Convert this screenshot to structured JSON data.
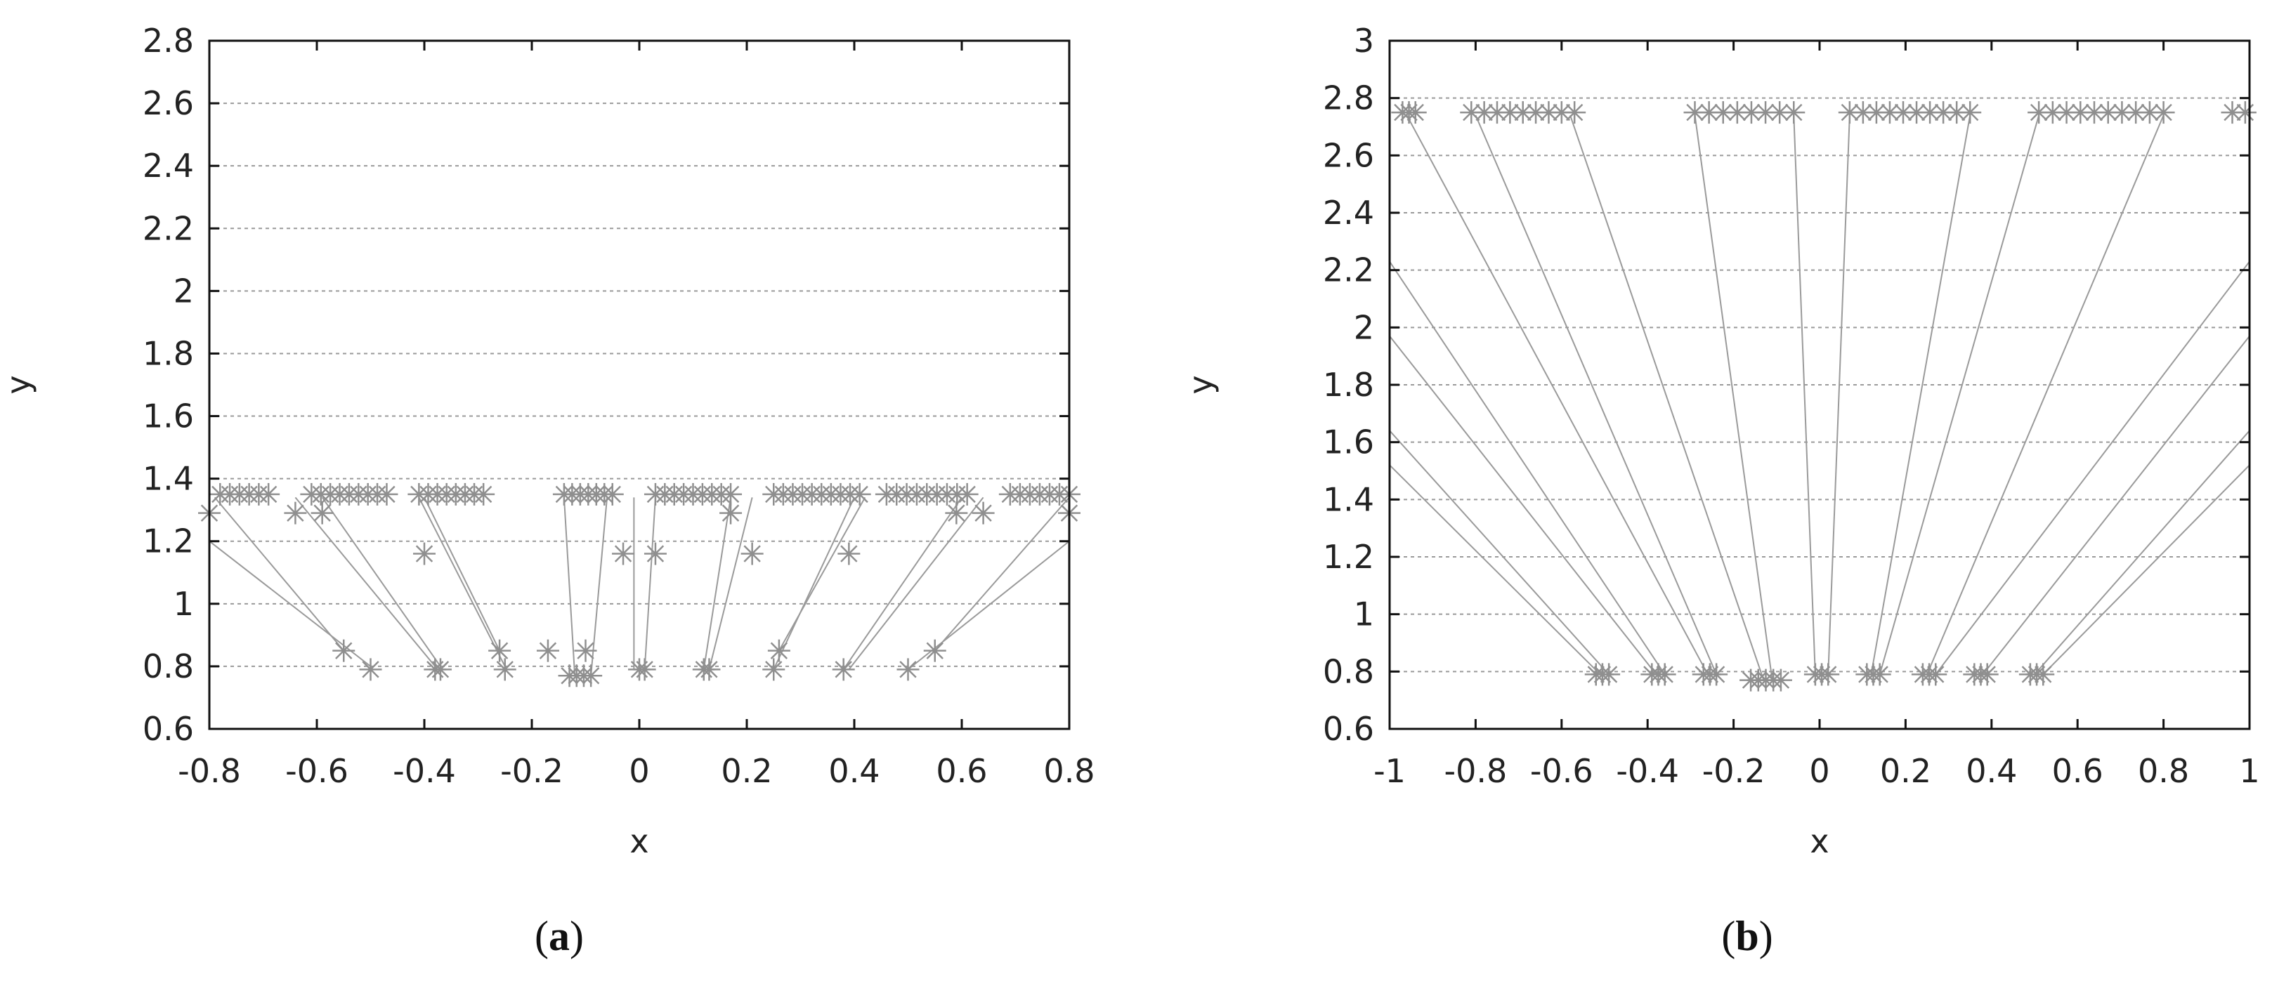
{
  "colors": {
    "series": "#9a9a9a",
    "grid": "#9a9a9a",
    "frame": "#111111",
    "text": "#222222"
  },
  "chart_data": [
    {
      "type": "scatter",
      "caption_letter": "a",
      "xlabel": "x",
      "ylabel": "y",
      "xlim": [
        -0.8,
        0.8
      ],
      "ylim": [
        0.6,
        2.8
      ],
      "grid": "horizontal dashed",
      "xticks": [
        -0.8,
        -0.6,
        -0.4,
        -0.2,
        0,
        0.2,
        0.4,
        0.6,
        0.8
      ],
      "yticks": [
        0.6,
        0.8,
        1,
        1.2,
        1.4,
        1.6,
        1.8,
        2,
        2.2,
        2.4,
        2.6,
        2.8
      ],
      "xtick_labels": [
        "-0.8",
        "-0.6",
        "-0.4",
        "-0.2",
        "0",
        "0.2",
        "0.4",
        "0.6",
        "0.8"
      ],
      "ytick_labels": [
        "0.6",
        "0.8",
        "1",
        "1.2",
        "1.4",
        "1.6",
        "1.8",
        "2",
        "2.2",
        "2.4",
        "2.6",
        "2.8"
      ],
      "marker": "asterisk",
      "clusters": [
        {
          "y": 1.35,
          "x_from": -0.78,
          "x_to": -0.69,
          "count": 6
        },
        {
          "y": 1.35,
          "x_from": -0.61,
          "x_to": -0.47,
          "count": 9
        },
        {
          "y": 1.35,
          "x_from": -0.41,
          "x_to": -0.29,
          "count": 8
        },
        {
          "y": 1.35,
          "x_from": -0.14,
          "x_to": -0.05,
          "count": 7
        },
        {
          "y": 1.35,
          "x_from": 0.03,
          "x_to": 0.17,
          "count": 9
        },
        {
          "y": 1.35,
          "x_from": 0.25,
          "x_to": 0.41,
          "count": 10
        },
        {
          "y": 1.35,
          "x_from": 0.46,
          "x_to": 0.61,
          "count": 9
        },
        {
          "y": 1.35,
          "x_from": 0.69,
          "x_to": 0.8,
          "count": 7
        },
        {
          "y": 0.77,
          "x_from": -0.13,
          "x_to": -0.09,
          "count": 4
        }
      ],
      "points": [
        [
          -0.8,
          1.29
        ],
        [
          -0.64,
          1.29
        ],
        [
          -0.59,
          1.29
        ],
        [
          -0.4,
          1.16
        ],
        [
          -0.55,
          0.85
        ],
        [
          -0.5,
          0.79
        ],
        [
          -0.38,
          0.79
        ],
        [
          -0.37,
          0.79
        ],
        [
          -0.26,
          0.85
        ],
        [
          -0.25,
          0.79
        ],
        [
          -0.17,
          0.85
        ],
        [
          -0.1,
          0.85
        ],
        [
          -0.03,
          1.16
        ],
        [
          0.03,
          1.16
        ],
        [
          0,
          0.79
        ],
        [
          0.01,
          0.79
        ],
        [
          0.12,
          0.79
        ],
        [
          0.13,
          0.79
        ],
        [
          0.17,
          1.29
        ],
        [
          0.21,
          1.16
        ],
        [
          0.25,
          0.79
        ],
        [
          0.26,
          0.85
        ],
        [
          0.38,
          0.79
        ],
        [
          0.39,
          1.16
        ],
        [
          0.5,
          0.79
        ],
        [
          0.55,
          0.85
        ],
        [
          0.59,
          1.29
        ],
        [
          0.64,
          1.29
        ],
        [
          0.8,
          1.29
        ]
      ],
      "lines": [
        [
          [
            -0.8,
            1.2
          ],
          [
            -0.5,
            0.8
          ]
        ],
        [
          [
            -0.79,
            1.34
          ],
          [
            -0.55,
            0.85
          ]
        ],
        [
          [
            -0.64,
            1.34
          ],
          [
            -0.38,
            0.8
          ]
        ],
        [
          [
            -0.59,
            1.34
          ],
          [
            -0.37,
            0.8
          ]
        ],
        [
          [
            -0.41,
            1.34
          ],
          [
            -0.25,
            0.8
          ]
        ],
        [
          [
            -0.4,
            1.34
          ],
          [
            -0.26,
            0.85
          ]
        ],
        [
          [
            -0.14,
            1.34
          ],
          [
            -0.12,
            0.77
          ]
        ],
        [
          [
            -0.06,
            1.34
          ],
          [
            -0.09,
            0.77
          ]
        ],
        [
          [
            -0.01,
            1.34
          ],
          [
            -0.01,
            0.79
          ]
        ],
        [
          [
            0.03,
            1.34
          ],
          [
            0.01,
            0.79
          ]
        ],
        [
          [
            0.17,
            1.34
          ],
          [
            0.12,
            0.79
          ]
        ],
        [
          [
            0.21,
            1.34
          ],
          [
            0.13,
            0.79
          ]
        ],
        [
          [
            0.4,
            1.34
          ],
          [
            0.25,
            0.79
          ]
        ],
        [
          [
            0.42,
            1.34
          ],
          [
            0.26,
            0.85
          ]
        ],
        [
          [
            0.6,
            1.34
          ],
          [
            0.38,
            0.79
          ]
        ],
        [
          [
            0.64,
            1.34
          ],
          [
            0.39,
            0.79
          ]
        ],
        [
          [
            0.8,
            1.34
          ],
          [
            0.55,
            0.85
          ]
        ],
        [
          [
            0.8,
            1.2
          ],
          [
            0.5,
            0.79
          ]
        ]
      ]
    },
    {
      "type": "scatter",
      "caption_letter": "b",
      "xlabel": "x",
      "ylabel": "y",
      "xlim": [
        -1,
        1
      ],
      "ylim": [
        0.6,
        3
      ],
      "grid": "horizontal dashed",
      "xticks": [
        -1,
        -0.8,
        -0.6,
        -0.4,
        -0.2,
        0,
        0.2,
        0.4,
        0.6,
        0.8,
        1
      ],
      "yticks": [
        0.6,
        0.8,
        1,
        1.2,
        1.4,
        1.6,
        1.8,
        2,
        2.2,
        2.4,
        2.6,
        2.8,
        3
      ],
      "xtick_labels": [
        "-1",
        "-0.8",
        "-0.6",
        "-0.4",
        "-0.2",
        "0",
        "0.2",
        "0.4",
        "0.6",
        "0.8",
        "1"
      ],
      "ytick_labels": [
        "0.6",
        "0.8",
        "1",
        "1.2",
        "1.4",
        "1.6",
        "1.8",
        "2",
        "2.2",
        "2.4",
        "2.6",
        "2.8",
        "3"
      ],
      "marker": "asterisk",
      "clusters": [
        {
          "y": 2.75,
          "x_from": -0.97,
          "x_to": -0.94,
          "count": 3
        },
        {
          "y": 2.75,
          "x_from": -0.81,
          "x_to": -0.57,
          "count": 9
        },
        {
          "y": 2.75,
          "x_from": -0.29,
          "x_to": -0.06,
          "count": 8
        },
        {
          "y": 2.75,
          "x_from": 0.07,
          "x_to": 0.35,
          "count": 10
        },
        {
          "y": 2.75,
          "x_from": 0.51,
          "x_to": 0.8,
          "count": 10
        },
        {
          "y": 2.75,
          "x_from": 0.96,
          "x_to": 0.99,
          "count": 2
        },
        {
          "y": 0.79,
          "x_from": -0.52,
          "x_to": -0.49,
          "count": 3
        },
        {
          "y": 0.79,
          "x_from": -0.39,
          "x_to": -0.36,
          "count": 3
        },
        {
          "y": 0.79,
          "x_from": -0.27,
          "x_to": -0.24,
          "count": 3
        },
        {
          "y": 0.77,
          "x_from": -0.16,
          "x_to": -0.09,
          "count": 5
        },
        {
          "y": 0.79,
          "x_from": -0.01,
          "x_to": 0.02,
          "count": 3
        },
        {
          "y": 0.79,
          "x_from": 0.11,
          "x_to": 0.14,
          "count": 3
        },
        {
          "y": 0.79,
          "x_from": 0.24,
          "x_to": 0.27,
          "count": 3
        },
        {
          "y": 0.79,
          "x_from": 0.36,
          "x_to": 0.39,
          "count": 3
        },
        {
          "y": 0.79,
          "x_from": 0.49,
          "x_to": 0.52,
          "count": 3
        }
      ],
      "points": [],
      "lines": [
        [
          [
            -1,
            1.52
          ],
          [
            -0.51,
            0.79
          ]
        ],
        [
          [
            -1,
            1.64
          ],
          [
            -0.49,
            0.79
          ]
        ],
        [
          [
            -1,
            1.97
          ],
          [
            -0.38,
            0.79
          ]
        ],
        [
          [
            -1,
            2.23
          ],
          [
            -0.36,
            0.79
          ]
        ],
        [
          [
            -0.96,
            2.74
          ],
          [
            -0.26,
            0.79
          ]
        ],
        [
          [
            -0.8,
            2.74
          ],
          [
            -0.24,
            0.79
          ]
        ],
        [
          [
            -0.58,
            2.74
          ],
          [
            -0.13,
            0.77
          ]
        ],
        [
          [
            -0.29,
            2.74
          ],
          [
            -0.11,
            0.77
          ]
        ],
        [
          [
            -0.06,
            2.74
          ],
          [
            -0.01,
            0.79
          ]
        ],
        [
          [
            0.07,
            2.74
          ],
          [
            0.02,
            0.79
          ]
        ],
        [
          [
            0.35,
            2.74
          ],
          [
            0.12,
            0.79
          ]
        ],
        [
          [
            0.51,
            2.74
          ],
          [
            0.14,
            0.79
          ]
        ],
        [
          [
            0.8,
            2.74
          ],
          [
            0.25,
            0.79
          ]
        ],
        [
          [
            1,
            2.23
          ],
          [
            0.27,
            0.79
          ]
        ],
        [
          [
            1,
            1.97
          ],
          [
            0.38,
            0.79
          ]
        ],
        [
          [
            1,
            1.64
          ],
          [
            0.5,
            0.79
          ]
        ],
        [
          [
            1,
            1.52
          ],
          [
            0.52,
            0.79
          ]
        ]
      ]
    }
  ]
}
